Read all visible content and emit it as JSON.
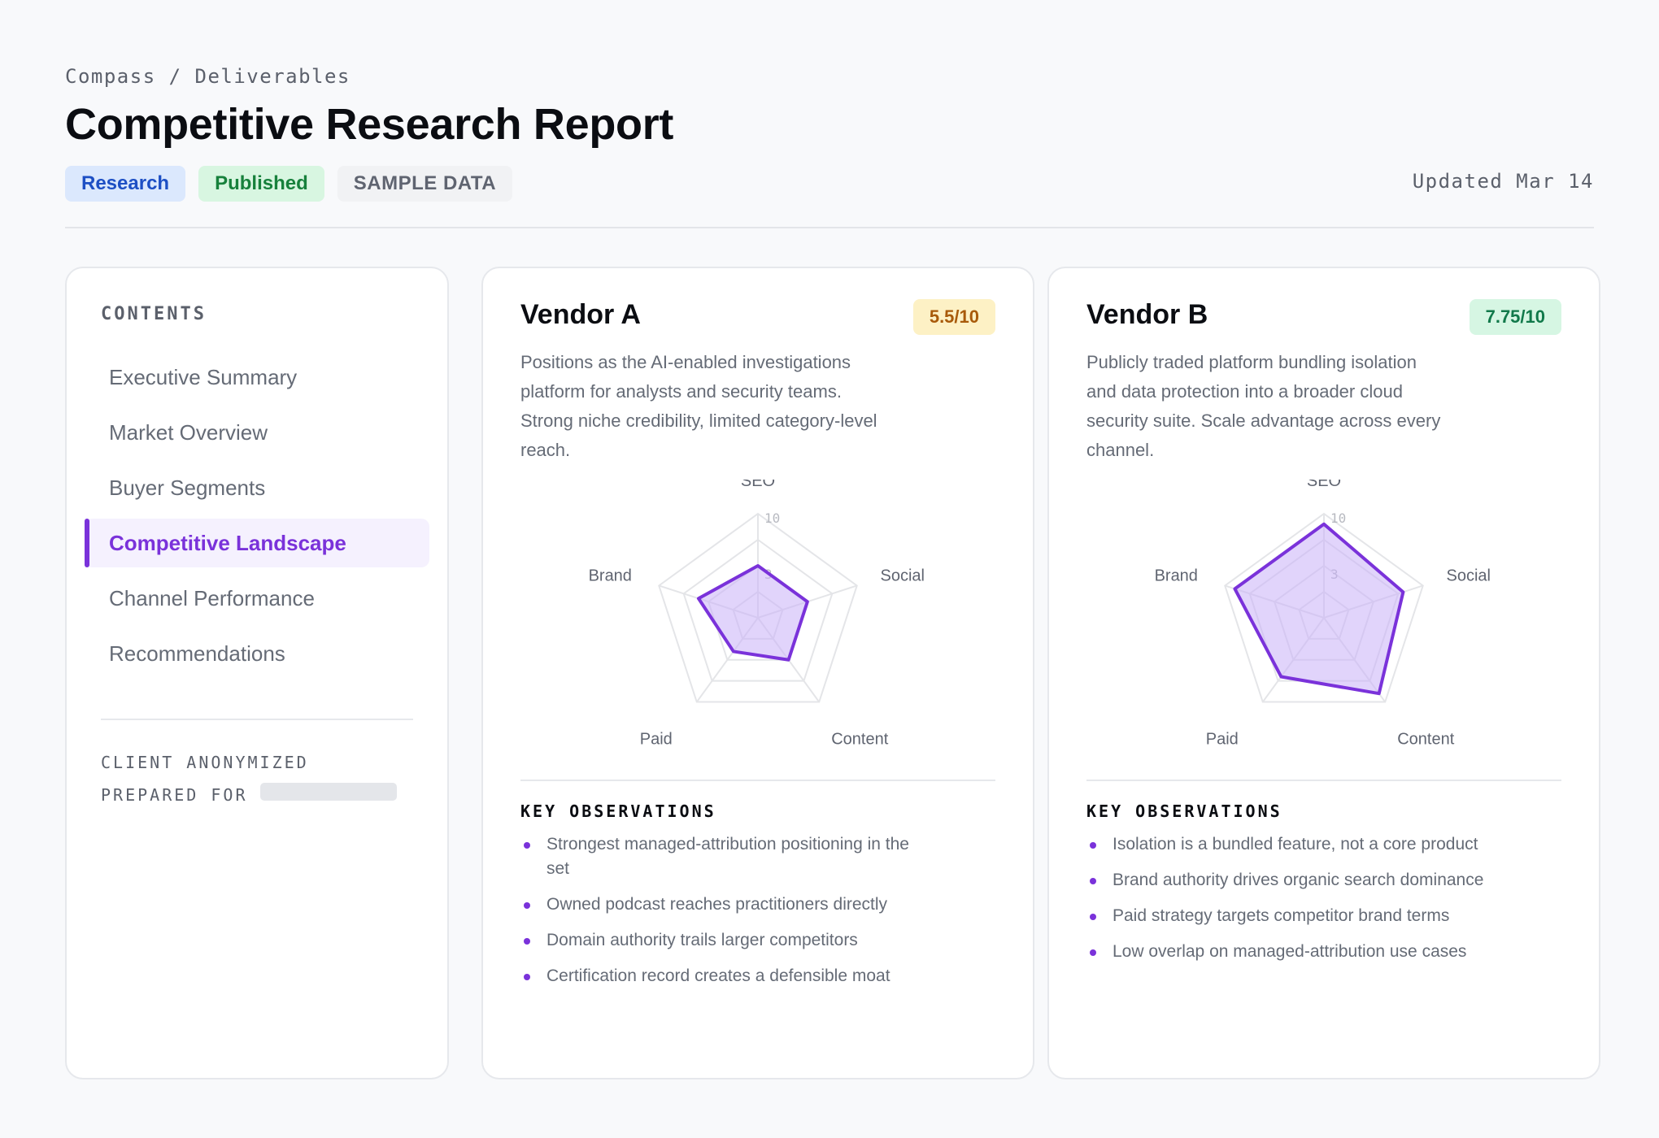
{
  "header": {
    "breadcrumb": "Compass / Deliverables",
    "title": "Competitive Research Report",
    "tags": {
      "research": "Research",
      "published": "Published",
      "sample": "SAMPLE DATA"
    },
    "updated": "Updated Mar 14"
  },
  "toc": {
    "heading": "CONTENTS",
    "items": [
      {
        "label": "Executive Summary"
      },
      {
        "label": "Market Overview"
      },
      {
        "label": "Buyer Segments"
      },
      {
        "label": "Competitive Landscape"
      },
      {
        "label": "Channel Performance"
      },
      {
        "label": "Recommendations"
      }
    ],
    "active_item": "Competitive Landscape",
    "client_note": "CLIENT ANONYMIZED",
    "prepared_for": "PREPARED FOR"
  },
  "radar_axes": [
    "SEO",
    "Social",
    "Content",
    "Paid",
    "Brand"
  ],
  "radar_scale": {
    "max": 10,
    "tick_labels": [
      "10",
      "3"
    ]
  },
  "vendors": [
    {
      "name": "Vendor A",
      "score": "5.5/10",
      "score_status": "warning",
      "description": "Positions as the AI-enabled investigations platform for analysts and security teams. Strong niche credibility, limited category-level reach.",
      "scores": [
        5,
        5,
        5,
        4,
        6
      ],
      "observations_heading": "KEY OBSERVATIONS",
      "observations": [
        "Strongest managed-attribution positioning in the set",
        "Owned podcast reaches practitioners directly",
        "Domain authority trails larger competitors",
        "Certification record creates a defensible moat"
      ]
    },
    {
      "name": "Vendor B",
      "score": "7.75/10",
      "score_status": "good",
      "description": "Publicly traded platform bundling isolation and data protection into a broader cloud security suite. Scale advantage across every channel.",
      "scores": [
        9,
        8,
        9,
        7,
        9
      ],
      "observations_heading": "KEY OBSERVATIONS",
      "observations": [
        "Isolation is a bundled feature, not a core product",
        "Brand authority drives organic search dominance",
        "Paid strategy targets competitor brand terms",
        "Low overlap on managed-attribution use cases"
      ]
    }
  ],
  "colors": {
    "accent": "#7a32da",
    "radar_fill": "#c9b1f7",
    "grid": "#e4e5e8"
  }
}
